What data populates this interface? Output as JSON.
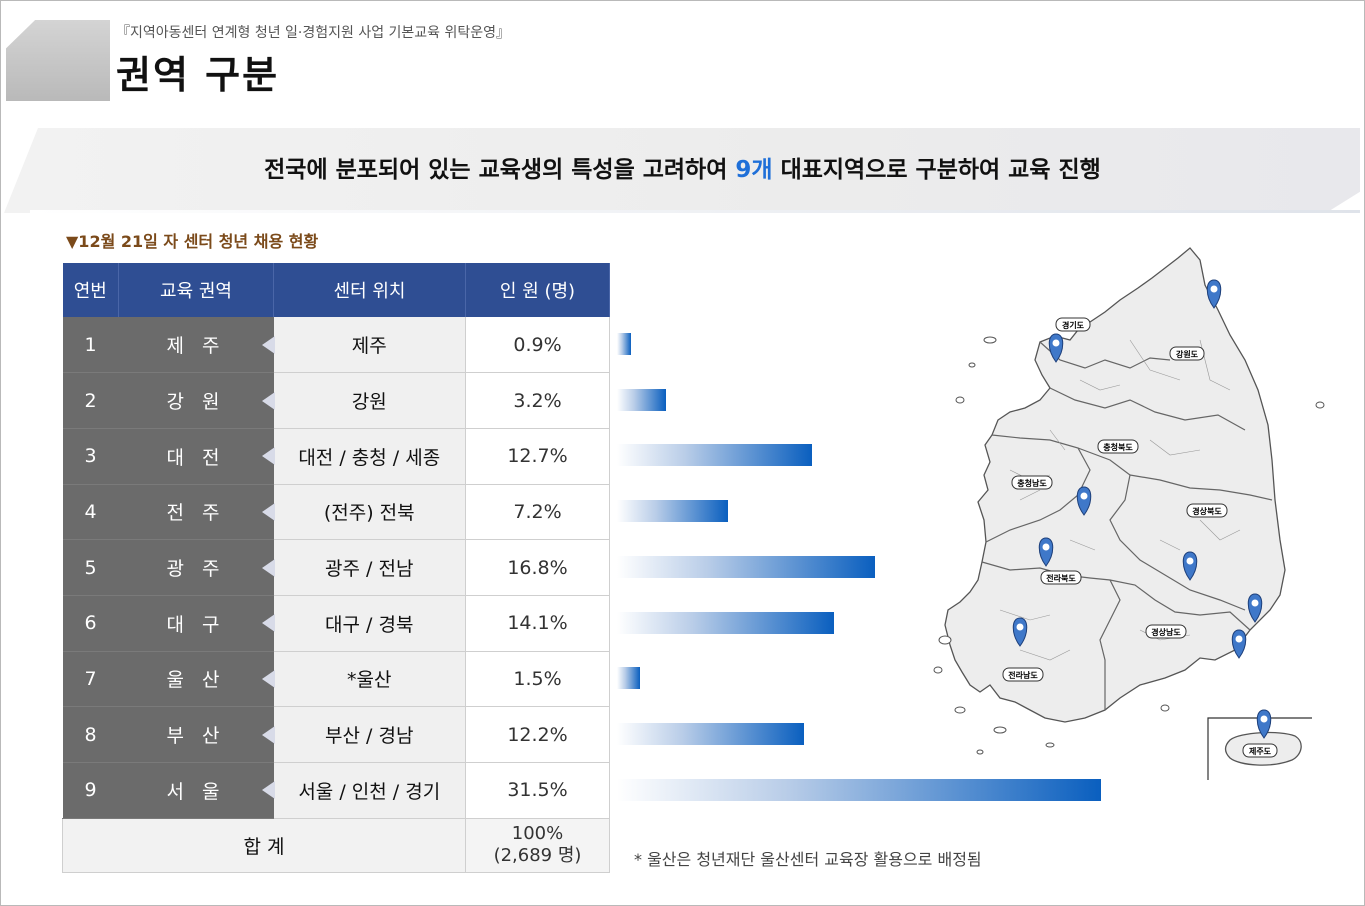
{
  "header": {
    "subtitle": "『지역아동센터 연계형 청년 일·경험지원 사업 기본교육 위탁운영』",
    "title": "권역 구분"
  },
  "banner": {
    "text_before": "전국에 분포되어 있는 교육생의 특성을 고려하여 ",
    "highlight": "9개",
    "text_after": " 대표지역으로 구분하여 교육 진행"
  },
  "section_title": "▼12월 21일 자 센터 청년 채용 현황",
  "table": {
    "headers": [
      "연번",
      "교육 권역",
      "센터 위치",
      "인 원 (명)"
    ],
    "rows": [
      {
        "no": "1",
        "region": "제 주",
        "center": "제주",
        "people": "0.9%",
        "pct": 0.9
      },
      {
        "no": "2",
        "region": "강 원",
        "center": "강원",
        "people": "3.2%",
        "pct": 3.2
      },
      {
        "no": "3",
        "region": "대 전",
        "center": "대전 / 충청 / 세종",
        "people": "12.7%",
        "pct": 12.7
      },
      {
        "no": "4",
        "region": "전 주",
        "center": "(전주) 전북",
        "people": "7.2%",
        "pct": 7.2
      },
      {
        "no": "5",
        "region": "광 주",
        "center": "광주 / 전남",
        "people": "16.8%",
        "pct": 16.8
      },
      {
        "no": "6",
        "region": "대 구",
        "center": "대구 / 경북",
        "people": "14.1%",
        "pct": 14.1
      },
      {
        "no": "7",
        "region": "울 산",
        "center": "*울산",
        "people": "1.5%",
        "pct": 1.5
      },
      {
        "no": "8",
        "region": "부 산",
        "center": "부산 / 경남",
        "people": "12.2%",
        "pct": 12.2
      },
      {
        "no": "9",
        "region": "서 울",
        "center": "서울 / 인천 / 경기",
        "people": "31.5%",
        "pct": 31.5
      }
    ],
    "total": {
      "label": "합 계",
      "line1": "100%",
      "line2": "(2,689 명)"
    }
  },
  "note": "* 울산은 청년재단 울산센터 교육장 활용으로 배정됨",
  "map": {
    "labels": [
      "경기도",
      "강원도",
      "충청북도",
      "충청남도",
      "경상북도",
      "전라북도",
      "경상남도",
      "전라남도",
      "제주도"
    ],
    "pin_color": "#3f78c9"
  },
  "colors": {
    "header_bg": "#2f4e93",
    "highlight": "#1e6fd8",
    "bar": "#0a5fbf"
  }
}
